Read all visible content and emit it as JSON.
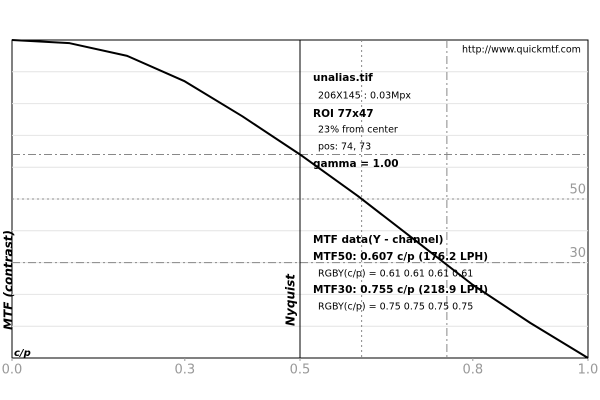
{
  "chart_data": {
    "type": "line",
    "x_label": "c/p",
    "y_label": "MTF (contrast)",
    "x": [
      0,
      0.1,
      0.2,
      0.3,
      0.4,
      0.5,
      0.6,
      0.7,
      0.8,
      0.9,
      1.0
    ],
    "series": [
      {
        "color": "#000000",
        "values": [
          100,
          99,
          95,
          87,
          76,
          64,
          51,
          37,
          23,
          11,
          0
        ]
      }
    ],
    "xlim": [
      0,
      1
    ],
    "xticks": [
      {
        "value": 0,
        "label": "0.0"
      },
      0.3,
      0.5,
      0.8,
      {
        "value": 1,
        "label": "1.0"
      }
    ],
    "ylim": [
      0,
      100
    ],
    "yticks": [
      50,
      30
    ],
    "minor_yticks": [
      10,
      20,
      30,
      40,
      50,
      60,
      70,
      80,
      90
    ],
    "nyquist": {
      "value": 0.5,
      "label": "Nyquist"
    },
    "mtf50_x": 0.607,
    "mtf30_x": 0.755,
    "mtf_at_nyquist": 64,
    "annotations": [
      {
        "text": "http://www.quickmtf.com",
        "bold": false
      },
      {
        "text": "unalias.tif",
        "bold": true
      },
      {
        "text": "206X145 : 0.03Mpx",
        "bold": false
      },
      {
        "text": "ROI 77x47",
        "bold": true
      },
      {
        "text": "23% from center",
        "bold": false
      },
      {
        "text": "pos: 74, 73",
        "bold": false
      },
      {
        "text": "gamma = 1.00",
        "bold": true
      },
      {
        "text": "MTF data(Y - channel)",
        "bold": true
      },
      {
        "text": "MTF50: 0.607 c/p (176.2 LPH)",
        "bold": true
      },
      {
        "text": "RGBY(c/p) = 0.61 0.61 0.61 0.61",
        "bold": false
      },
      {
        "text": "MTF30: 0.755 c/p (218.9 LPH)",
        "bold": true
      },
      {
        "text": "RGBY(c/p) = 0.75 0.75 0.75 0.75",
        "bold": false
      }
    ]
  }
}
